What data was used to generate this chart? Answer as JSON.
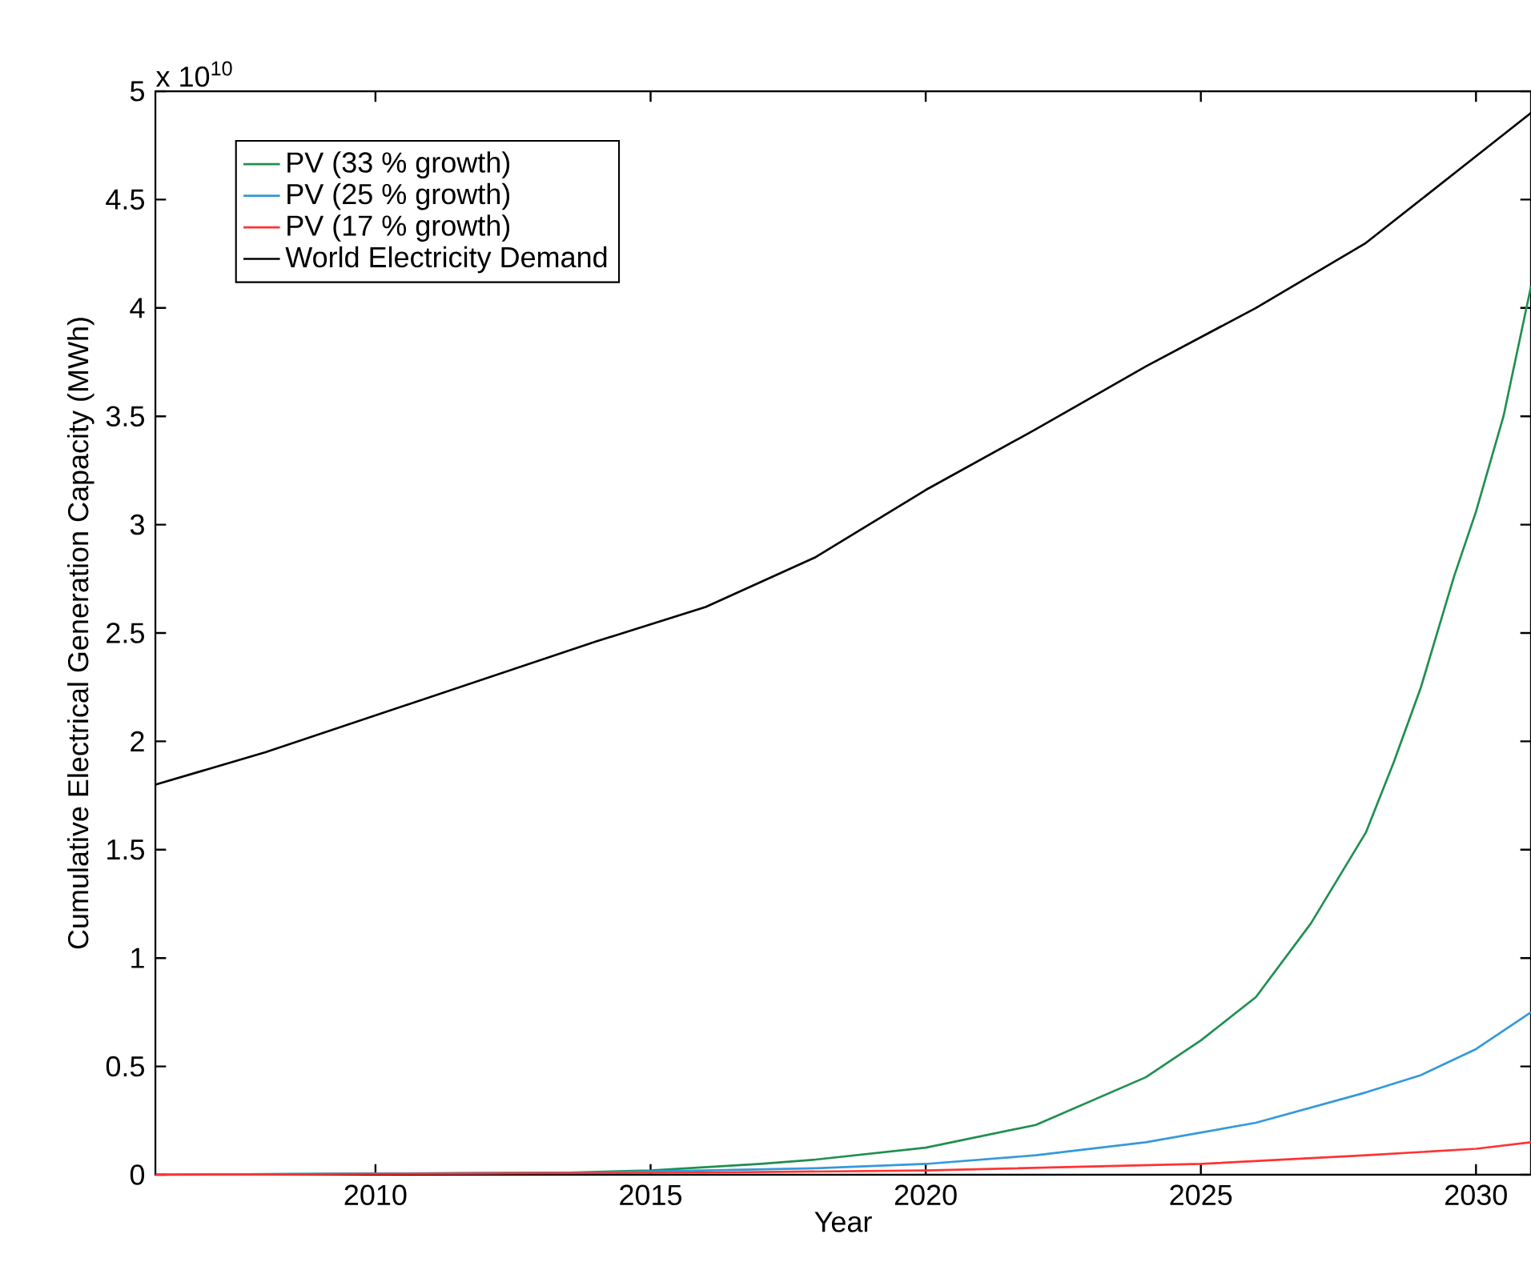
{
  "chart_data": {
    "type": "line",
    "xlabel": "Year",
    "ylabel": "Cumulative Electrical Generation Capacity (MWh)",
    "annotations": [
      "x 10$^{10}$"
    ],
    "xlim": [
      2006,
      2031
    ],
    "ylim": [
      0,
      5
    ],
    "xticks": [
      2010,
      2015,
      2020,
      2025,
      2030
    ],
    "yticks": [
      0,
      0.5,
      1,
      1.5,
      2,
      2.5,
      3,
      3.5,
      4,
      4.5,
      5
    ],
    "legend": "top left",
    "grid": false,
    "marker": "none",
    "line_style": "solid",
    "series": [
      {
        "name": "PV (33 % growth)",
        "color": "#1f8f4f",
        "x": [
          2006,
          2013.5,
          2015,
          2017,
          2018,
          2020,
          2022,
          2024,
          2025,
          2026,
          2027,
          2028,
          2028.5,
          2029,
          2029.6,
          2030,
          2030.5,
          2031
        ],
        "values": [
          0,
          0.01,
          0.02,
          0.05,
          0.07,
          0.125,
          0.23,
          0.45,
          0.62,
          0.82,
          1.16,
          1.58,
          1.9,
          2.25,
          2.76,
          3.06,
          3.5,
          4.1
        ]
      },
      {
        "name": "PV (25 % growth)",
        "color": "#3399dd",
        "x": [
          2006,
          2014,
          2016,
          2018,
          2020,
          2022,
          2024,
          2026,
          2028,
          2029,
          2030,
          2031
        ],
        "values": [
          0,
          0.01,
          0.02,
          0.03,
          0.05,
          0.09,
          0.15,
          0.24,
          0.38,
          0.46,
          0.58,
          0.75
        ]
      },
      {
        "name": "PV (17 % growth)",
        "color": "#ff3333",
        "x": [
          2006,
          2016,
          2020,
          2025,
          2028,
          2030,
          2031
        ],
        "values": [
          0,
          0.01,
          0.02,
          0.05,
          0.09,
          0.12,
          0.15
        ]
      },
      {
        "name": "World Electricity Demand",
        "color": "#000000",
        "x": [
          2006,
          2008,
          2010,
          2012,
          2014,
          2016,
          2018,
          2020,
          2022,
          2024,
          2026,
          2028,
          2030,
          2031
        ],
        "values": [
          1.8,
          1.95,
          2.12,
          2.29,
          2.46,
          2.62,
          2.85,
          3.16,
          3.44,
          3.73,
          4.0,
          4.3,
          4.7,
          4.9
        ]
      }
    ]
  }
}
